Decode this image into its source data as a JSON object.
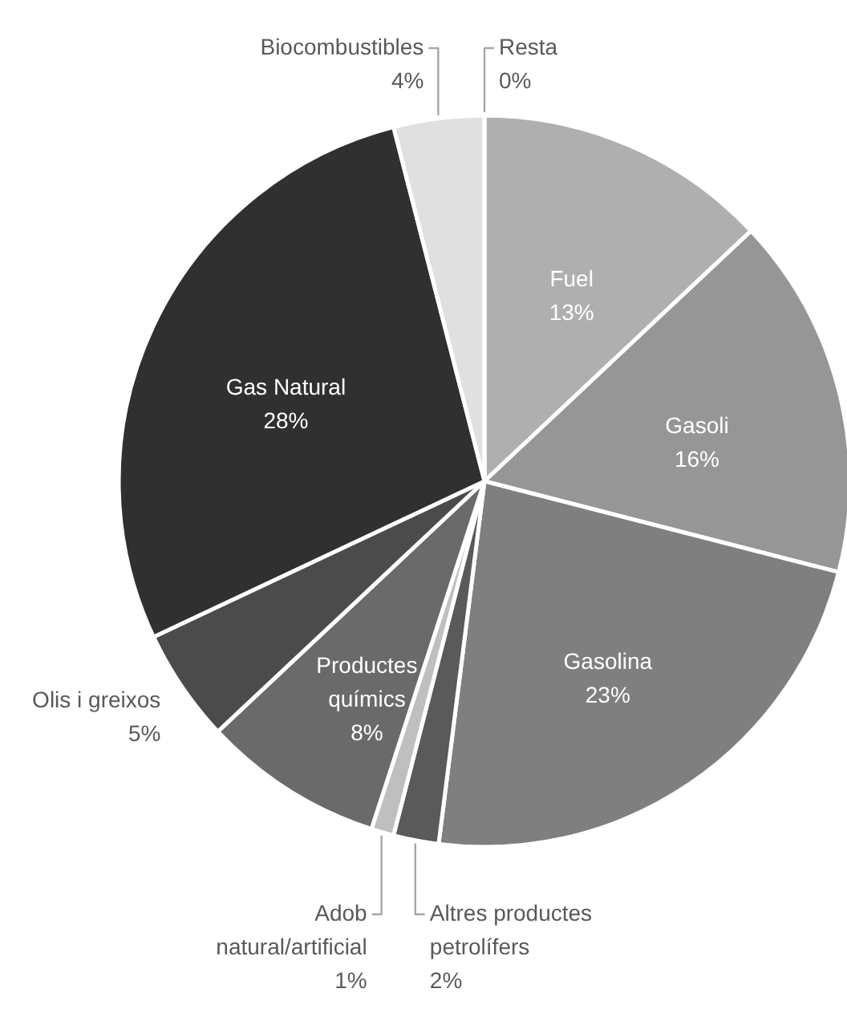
{
  "chart_data": {
    "type": "pie",
    "categories": [
      "Fuel",
      "Gasoli",
      "Gasolina",
      "Altres productes petrolífers",
      "Adob natural/artificial",
      "Productes químics",
      "Olis i greixos",
      "Gas Natural",
      "Biocombustibles",
      "Resta"
    ],
    "values": [
      13,
      16,
      23,
      2,
      1,
      8,
      5,
      28,
      4,
      0
    ],
    "value_labels": [
      "13%",
      "16%",
      "23%",
      "2%",
      "1%",
      "8%",
      "5%",
      "28%",
      "4%",
      "0%"
    ],
    "colors": [
      "#afafaf",
      "#969696",
      "#7f7f7f",
      "#5a5a5a",
      "#bfbfbf",
      "#6a6a6a",
      "#4b4b4b",
      "#303030",
      "#e0e0e0",
      "#f2f2f2"
    ]
  }
}
